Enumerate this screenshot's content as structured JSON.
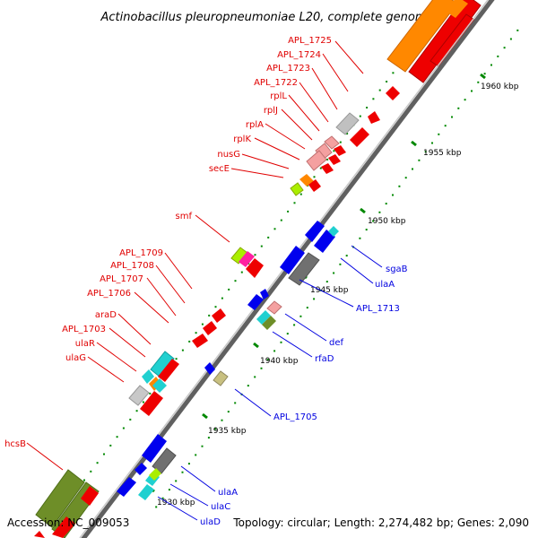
{
  "title": "Actinobacillus pleuropneumoniae L20, complete genome",
  "footer": {
    "accession": "Accession: NC_009053",
    "summary": "Topology: circular; Length: 2,274,482 bp; Genes: 2,090"
  },
  "scale_labels": [
    "1960 kbp",
    "1955 kbp",
    "1950 kbp",
    "1945 kbp",
    "1940 kbp",
    "1935 kbp",
    "1930 kbp"
  ],
  "colors": {
    "backbone": "#808080",
    "red_label": "#e00000",
    "blue_label": "#0000e0",
    "tick": "#008800"
  },
  "forward_genes": [
    "APL_1725",
    "APL_1724",
    "APL_1723",
    "APL_1722",
    "rplL",
    "rplJ",
    "rplA",
    "rplK",
    "nusG",
    "secE",
    "smf",
    "APL_1709",
    "APL_1708",
    "APL_1707",
    "APL_1706",
    "araD",
    "APL_1703",
    "ulaR",
    "ulaG",
    "hcsB"
  ],
  "reverse_genes": [
    "sgaB",
    "ulaA",
    "APL_1713",
    "def",
    "rfaD",
    "APL_1705",
    "ulaA",
    "ulaC",
    "ulaD"
  ]
}
